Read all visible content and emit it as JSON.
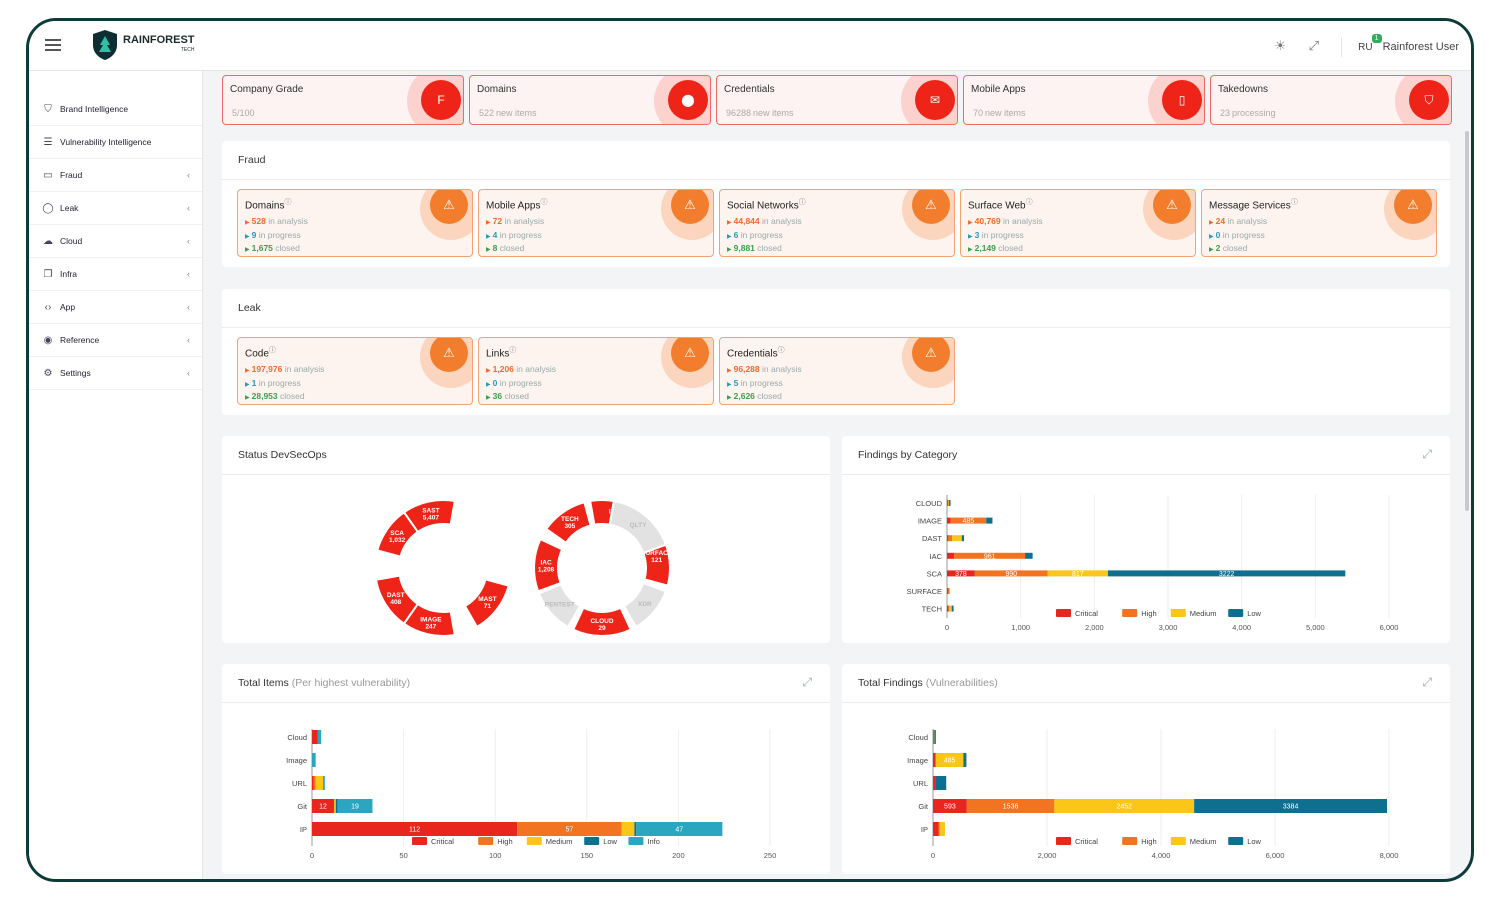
{
  "header": {
    "brand_name": "RAINFOREST",
    "brand_sub": "TECH",
    "user_initials": "RU",
    "notification_count": "1",
    "user_name": "Rainforest User"
  },
  "sidebar": {
    "items": [
      {
        "label": "Brand Intelligence",
        "icon": "shield-icon",
        "chevron": false
      },
      {
        "label": "Vulnerability Intelligence",
        "icon": "server-icon",
        "chevron": false
      },
      {
        "label": "Fraud",
        "icon": "book-icon",
        "chevron": true
      },
      {
        "label": "Leak",
        "icon": "drop-icon",
        "chevron": true
      },
      {
        "label": "Cloud",
        "icon": "cloud-icon",
        "chevron": true
      },
      {
        "label": "Infra",
        "icon": "copy-icon",
        "chevron": true
      },
      {
        "label": "App",
        "icon": "code-icon",
        "chevron": true
      },
      {
        "label": "Reference",
        "icon": "globe-icon",
        "chevron": true
      },
      {
        "label": "Settings",
        "icon": "gear-icon",
        "chevron": true
      }
    ]
  },
  "top_cards": [
    {
      "label": "Company Grade",
      "value": "5/100",
      "suffix": "",
      "icon": "F"
    },
    {
      "label": "Domains",
      "value": "522",
      "suffix": "new items",
      "icon": "location-pin-icon"
    },
    {
      "label": "Credentials",
      "value": "96288",
      "suffix": "new items",
      "icon": "envelope-icon"
    },
    {
      "label": "Mobile Apps",
      "value": "70",
      "suffix": "new items",
      "icon": "mobile-icon"
    },
    {
      "label": "Takedowns",
      "value": "23",
      "suffix": "processing",
      "icon": "shield-icon"
    }
  ],
  "fraud": {
    "title": "Fraud",
    "cards": [
      {
        "title": "Domains",
        "analysis": "528",
        "progress": "9",
        "closed": "1,675"
      },
      {
        "title": "Mobile Apps",
        "analysis": "72",
        "progress": "4",
        "closed": "8"
      },
      {
        "title": "Social Networks",
        "analysis": "44,844",
        "progress": "6",
        "closed": "9,881"
      },
      {
        "title": "Surface Web",
        "analysis": "40,769",
        "progress": "3",
        "closed": "2,149"
      },
      {
        "title": "Message Services",
        "analysis": "24",
        "progress": "0",
        "closed": "2"
      }
    ]
  },
  "leak": {
    "title": "Leak",
    "cards": [
      {
        "title": "Code",
        "analysis": "197,976",
        "progress": "1",
        "closed": "28,953"
      },
      {
        "title": "Links",
        "analysis": "1,206",
        "progress": "0",
        "closed": "36"
      },
      {
        "title": "Credentials",
        "analysis": "96,288",
        "progress": "5",
        "closed": "2,626"
      }
    ]
  },
  "labels": {
    "in_analysis": "in analysis",
    "in_progress": "in progress",
    "closed": "closed",
    "info_mark": "ⓘ"
  },
  "devsecops": {
    "title": "Status DevSecOps",
    "segments": [
      {
        "name": "SAST",
        "value": "5,407",
        "active": true
      },
      {
        "name": "SCA",
        "value": "1,032",
        "active": true
      },
      {
        "name": "DAST",
        "value": "408",
        "active": true
      },
      {
        "name": "IMAGE",
        "value": "247",
        "active": true
      },
      {
        "name": "MAST",
        "value": "71",
        "active": true
      },
      {
        "name": "IAC",
        "value": "1,208",
        "active": true
      },
      {
        "name": "TECH",
        "value": "305",
        "active": true
      },
      {
        "name": "INFRA",
        "value": "6",
        "active": true
      },
      {
        "name": "SURFACE",
        "value": "121",
        "active": true
      },
      {
        "name": "CLOUD",
        "value": "29",
        "active": true
      },
      {
        "name": "QLTY",
        "value": "",
        "active": false
      },
      {
        "name": "XDR",
        "value": "",
        "active": false
      },
      {
        "name": "PENTEST",
        "value": "",
        "active": false
      }
    ]
  },
  "colors": {
    "critical": "#e8261d",
    "high": "#f27420",
    "medium": "#f9c619",
    "low": "#0f6f8f",
    "info": "#2aa6c0",
    "accent": "#ee2418"
  },
  "chart_data": [
    {
      "id": "findings_by_category",
      "title": "Findings by Category",
      "type": "bar",
      "orientation": "horizontal",
      "stacked": true,
      "categories": [
        "CLOUD",
        "IMAGE",
        "DAST",
        "IAC",
        "SCA",
        "SURFACE",
        "TECH"
      ],
      "series": [
        {
          "name": "Critical",
          "values": [
            10,
            47,
            13,
            99,
            378,
            12,
            15
          ]
        },
        {
          "name": "High",
          "values": [
            8,
            485,
            58,
            961,
            990,
            23,
            13
          ]
        },
        {
          "name": "Medium",
          "values": [
            10,
            0,
            130,
            0,
            817,
            0,
            36
          ]
        },
        {
          "name": "Low",
          "values": [
            6,
            85,
            30,
            102,
            3222,
            0,
            25
          ]
        }
      ],
      "xlim": [
        0,
        6000
      ],
      "xticks": [
        "0",
        "1,000",
        "2,000",
        "3,000",
        "4,000",
        "5,000",
        "6,000"
      ],
      "legend": "bottom"
    },
    {
      "id": "total_items",
      "title": "Total Items",
      "subtitle": "(Per highest vulnerability)",
      "type": "bar",
      "orientation": "horizontal",
      "stacked": true,
      "categories": [
        "Cloud",
        "Image",
        "URL",
        "Git",
        "IP"
      ],
      "series": [
        {
          "name": "Critical",
          "values": [
            3,
            0,
            1,
            12,
            112
          ]
        },
        {
          "name": "High",
          "values": [
            0,
            0,
            1,
            0,
            57
          ]
        },
        {
          "name": "Medium",
          "values": [
            0,
            0,
            4,
            1,
            7
          ]
        },
        {
          "name": "Low",
          "values": [
            0,
            0,
            0,
            1,
            1
          ]
        },
        {
          "name": "Info",
          "values": [
            2,
            2,
            1,
            19,
            47
          ]
        }
      ],
      "xlim": [
        0,
        250
      ],
      "xticks": [
        "0",
        "50",
        "100",
        "150",
        "200",
        "250"
      ],
      "legend": "bottom"
    },
    {
      "id": "total_findings",
      "title": "Total Findings",
      "subtitle": "(Vulnerabilities)",
      "type": "bar",
      "orientation": "horizontal",
      "stacked": true,
      "categories": [
        "Cloud",
        "Image",
        "URL",
        "Git",
        "IP"
      ],
      "series": [
        {
          "name": "Critical",
          "values": [
            10,
            48,
            52,
            593,
            96
          ]
        },
        {
          "name": "High",
          "values": [
            6,
            0,
            0,
            1536,
            19
          ]
        },
        {
          "name": "Medium",
          "values": [
            8,
            485,
            0,
            2452,
            94
          ]
        },
        {
          "name": "Low",
          "values": [
            4,
            53,
            180,
            3384,
            0
          ]
        }
      ],
      "xlim": [
        0,
        8000
      ],
      "xticks": [
        "0",
        "2,000",
        "4,000",
        "6,000",
        "8,000"
      ],
      "legend": "bottom"
    }
  ]
}
